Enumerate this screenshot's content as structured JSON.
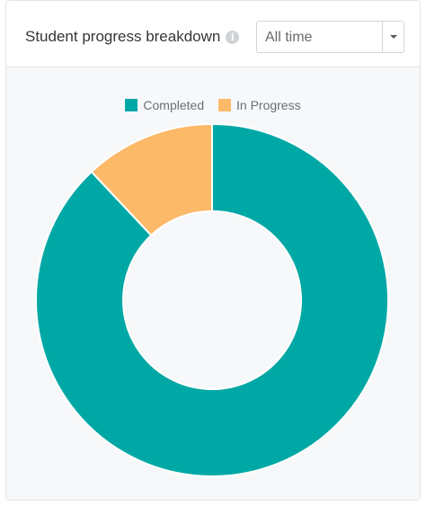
{
  "header": {
    "title": "Student progress breakdown",
    "info_icon": "info-icon",
    "info_glyph": "i"
  },
  "filter": {
    "selected": "All time",
    "icon": "caret-down-icon"
  },
  "colors": {
    "completed": "#00a8a5",
    "in_progress": "#fcb968"
  },
  "chart_data": {
    "type": "pie",
    "categories": [
      "Completed",
      "In Progress"
    ],
    "values": [
      88,
      12
    ],
    "legend_position": "top"
  }
}
